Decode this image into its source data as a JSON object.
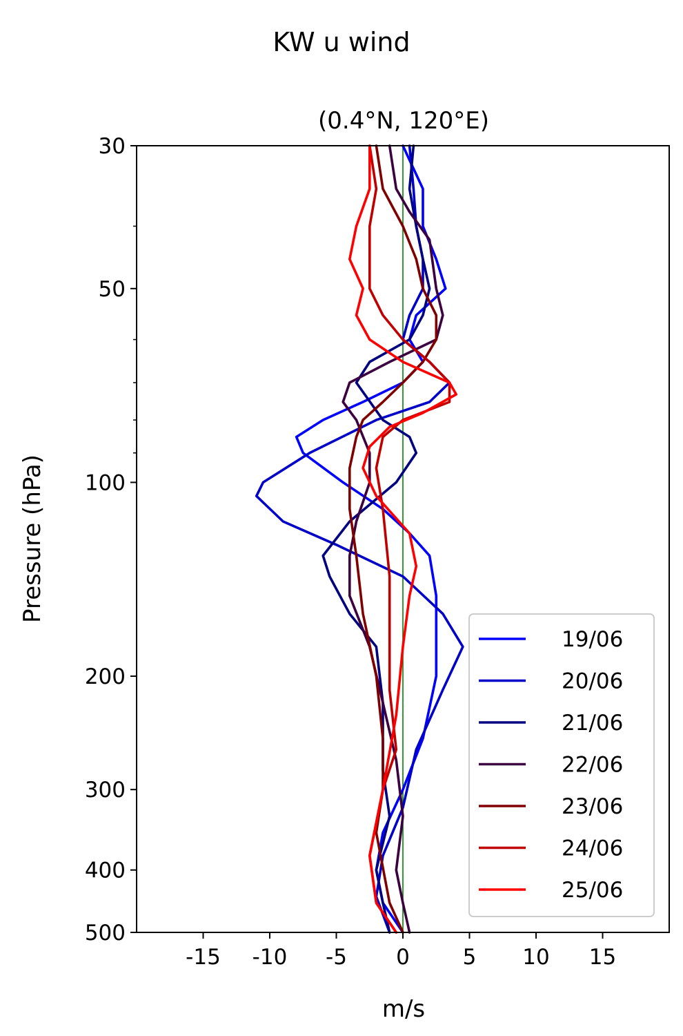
{
  "chart_data": {
    "type": "line",
    "title": "KW u wind",
    "subtitle": "(0.4°N, 120°E)",
    "xlabel": "m/s",
    "ylabel": "Pressure (hPa)",
    "xlim": [
      -20,
      20
    ],
    "ylim": [
      500,
      30
    ],
    "y_scale": "log",
    "x_ticks": [
      -15,
      -10,
      -5,
      0,
      5,
      10,
      15
    ],
    "x_tick_labels": [
      "-15",
      "-10",
      "-5",
      "0",
      "5",
      "10",
      "15"
    ],
    "y_ticks": [
      30,
      50,
      100,
      200,
      300,
      400,
      500
    ],
    "y_tick_labels": [
      "30",
      "50",
      "100",
      "200",
      "300",
      "400",
      "500"
    ],
    "y_minor_ticks": [
      40,
      60,
      70,
      80,
      90
    ],
    "zero_line_color": "#008000",
    "legend_position": "lower right",
    "series": [
      {
        "name": "19/06",
        "color": "#0000ff",
        "points": [
          [
            0.0,
            30
          ],
          [
            1.5,
            35
          ],
          [
            1.5,
            40
          ],
          [
            2.5,
            45
          ],
          [
            3.2,
            50
          ],
          [
            1.0,
            55
          ],
          [
            0.5,
            60
          ],
          [
            1.5,
            65
          ],
          [
            0,
            70
          ],
          [
            -3.0,
            75
          ],
          [
            -6.0,
            80
          ],
          [
            -8.0,
            85
          ],
          [
            -7.5,
            90
          ],
          [
            -4.5,
            100
          ],
          [
            -1.5,
            110
          ],
          [
            0.5,
            120
          ],
          [
            2,
            130
          ],
          [
            2.5,
            150
          ],
          [
            2.5,
            180
          ],
          [
            2.5,
            200
          ],
          [
            1.5,
            250
          ],
          [
            0,
            300
          ],
          [
            -1.5,
            350
          ],
          [
            -2,
            400
          ],
          [
            -1.5,
            450
          ],
          [
            0,
            500
          ]
        ]
      },
      {
        "name": "20/06",
        "color": "#0000c8",
        "points": [
          [
            0.5,
            30
          ],
          [
            0.8,
            35
          ],
          [
            1.0,
            40
          ],
          [
            1.5,
            45
          ],
          [
            1.5,
            50
          ],
          [
            0.5,
            55
          ],
          [
            0,
            60
          ],
          [
            2,
            65
          ],
          [
            3.5,
            70
          ],
          [
            2,
            75
          ],
          [
            -2,
            80
          ],
          [
            -7,
            90
          ],
          [
            -10.5,
            100
          ],
          [
            -11,
            105
          ],
          [
            -9,
            115
          ],
          [
            -5,
            125
          ],
          [
            0,
            140
          ],
          [
            3,
            160
          ],
          [
            4.5,
            180
          ],
          [
            3,
            210
          ],
          [
            1,
            260
          ],
          [
            0,
            320
          ],
          [
            -1.5,
            380
          ],
          [
            -2,
            440
          ],
          [
            -1,
            500
          ]
        ]
      },
      {
        "name": "21/06",
        "color": "#000080",
        "points": [
          [
            0.8,
            30
          ],
          [
            0.5,
            35
          ],
          [
            1.0,
            40
          ],
          [
            1.5,
            45
          ],
          [
            2,
            50
          ],
          [
            1.5,
            55
          ],
          [
            0.5,
            60
          ],
          [
            -2.5,
            65
          ],
          [
            -3.5,
            70
          ],
          [
            -1.5,
            80
          ],
          [
            0.5,
            85
          ],
          [
            1.0,
            90
          ],
          [
            -0.5,
            100
          ],
          [
            -4,
            115
          ],
          [
            -6,
            130
          ],
          [
            -5.5,
            140
          ],
          [
            -4,
            160
          ],
          [
            -2,
            180
          ],
          [
            -1.5,
            220
          ],
          [
            -1.5,
            280
          ],
          [
            -1,
            330
          ],
          [
            -2,
            400
          ],
          [
            -1.5,
            450
          ],
          [
            -1,
            500
          ]
        ]
      },
      {
        "name": "22/06",
        "color": "#3c0040",
        "points": [
          [
            -1,
            30
          ],
          [
            -0.5,
            35
          ],
          [
            0.5,
            38
          ],
          [
            2,
            42
          ],
          [
            2.5,
            50
          ],
          [
            3,
            55
          ],
          [
            2.5,
            60
          ],
          [
            -1,
            65
          ],
          [
            -4,
            70
          ],
          [
            -4.5,
            75
          ],
          [
            -3.5,
            80
          ],
          [
            -2.5,
            90
          ],
          [
            -2.5,
            100
          ],
          [
            -3.5,
            115
          ],
          [
            -4,
            130
          ],
          [
            -4,
            150
          ],
          [
            -2.5,
            180
          ],
          [
            -1.5,
            220
          ],
          [
            -0.5,
            270
          ],
          [
            0,
            330
          ],
          [
            -0.5,
            400
          ],
          [
            0,
            450
          ],
          [
            0.5,
            500
          ]
        ]
      },
      {
        "name": "23/06",
        "color": "#800000",
        "points": [
          [
            -2,
            30
          ],
          [
            -1.5,
            35
          ],
          [
            0,
            40
          ],
          [
            1,
            45
          ],
          [
            1.5,
            50
          ],
          [
            2.5,
            55
          ],
          [
            2.5,
            60
          ],
          [
            1.5,
            65
          ],
          [
            0,
            70
          ],
          [
            -1.5,
            75
          ],
          [
            -3,
            80
          ],
          [
            -3.5,
            85
          ],
          [
            -4,
            95
          ],
          [
            -4,
            110
          ],
          [
            -3.5,
            130
          ],
          [
            -3,
            160
          ],
          [
            -2,
            200
          ],
          [
            -1.5,
            250
          ],
          [
            -1.5,
            300
          ],
          [
            -2,
            350
          ],
          [
            -1,
            450
          ],
          [
            0,
            500
          ]
        ]
      },
      {
        "name": "24/06",
        "color": "#c00000",
        "points": [
          [
            -2.5,
            30
          ],
          [
            -2.0,
            35
          ],
          [
            -2.5,
            40
          ],
          [
            -2.5,
            50
          ],
          [
            -1.5,
            55
          ],
          [
            0,
            60
          ],
          [
            2,
            65
          ],
          [
            3.5,
            70
          ],
          [
            3.5,
            75
          ],
          [
            0,
            80
          ],
          [
            -1.5,
            85
          ],
          [
            -2,
            95
          ],
          [
            -1.5,
            110
          ],
          [
            -1,
            140
          ],
          [
            -1,
            170
          ],
          [
            -1,
            210
          ],
          [
            -0.5,
            260
          ],
          [
            -1.5,
            300
          ],
          [
            -2.5,
            380
          ],
          [
            -2,
            450
          ],
          [
            -0.5,
            500
          ]
        ]
      },
      {
        "name": "25/06",
        "color": "#ff0000",
        "points": [
          [
            -2.5,
            30
          ],
          [
            -2.5,
            35
          ],
          [
            -3.5,
            40
          ],
          [
            -4,
            45
          ],
          [
            -3,
            50
          ],
          [
            -3.5,
            55
          ],
          [
            -2.5,
            60
          ],
          [
            0,
            65
          ],
          [
            3.5,
            70
          ],
          [
            4,
            73
          ],
          [
            1.5,
            78
          ],
          [
            -1,
            82
          ],
          [
            -2.5,
            88
          ],
          [
            -3,
            95
          ],
          [
            -2,
            105
          ],
          [
            0.5,
            120
          ],
          [
            1,
            135
          ],
          [
            0.5,
            150
          ],
          [
            0,
            180
          ],
          [
            -0.5,
            230
          ],
          [
            -1.5,
            300
          ],
          [
            -2.5,
            380
          ],
          [
            -2,
            450
          ],
          [
            -0.5,
            500
          ]
        ]
      }
    ]
  }
}
